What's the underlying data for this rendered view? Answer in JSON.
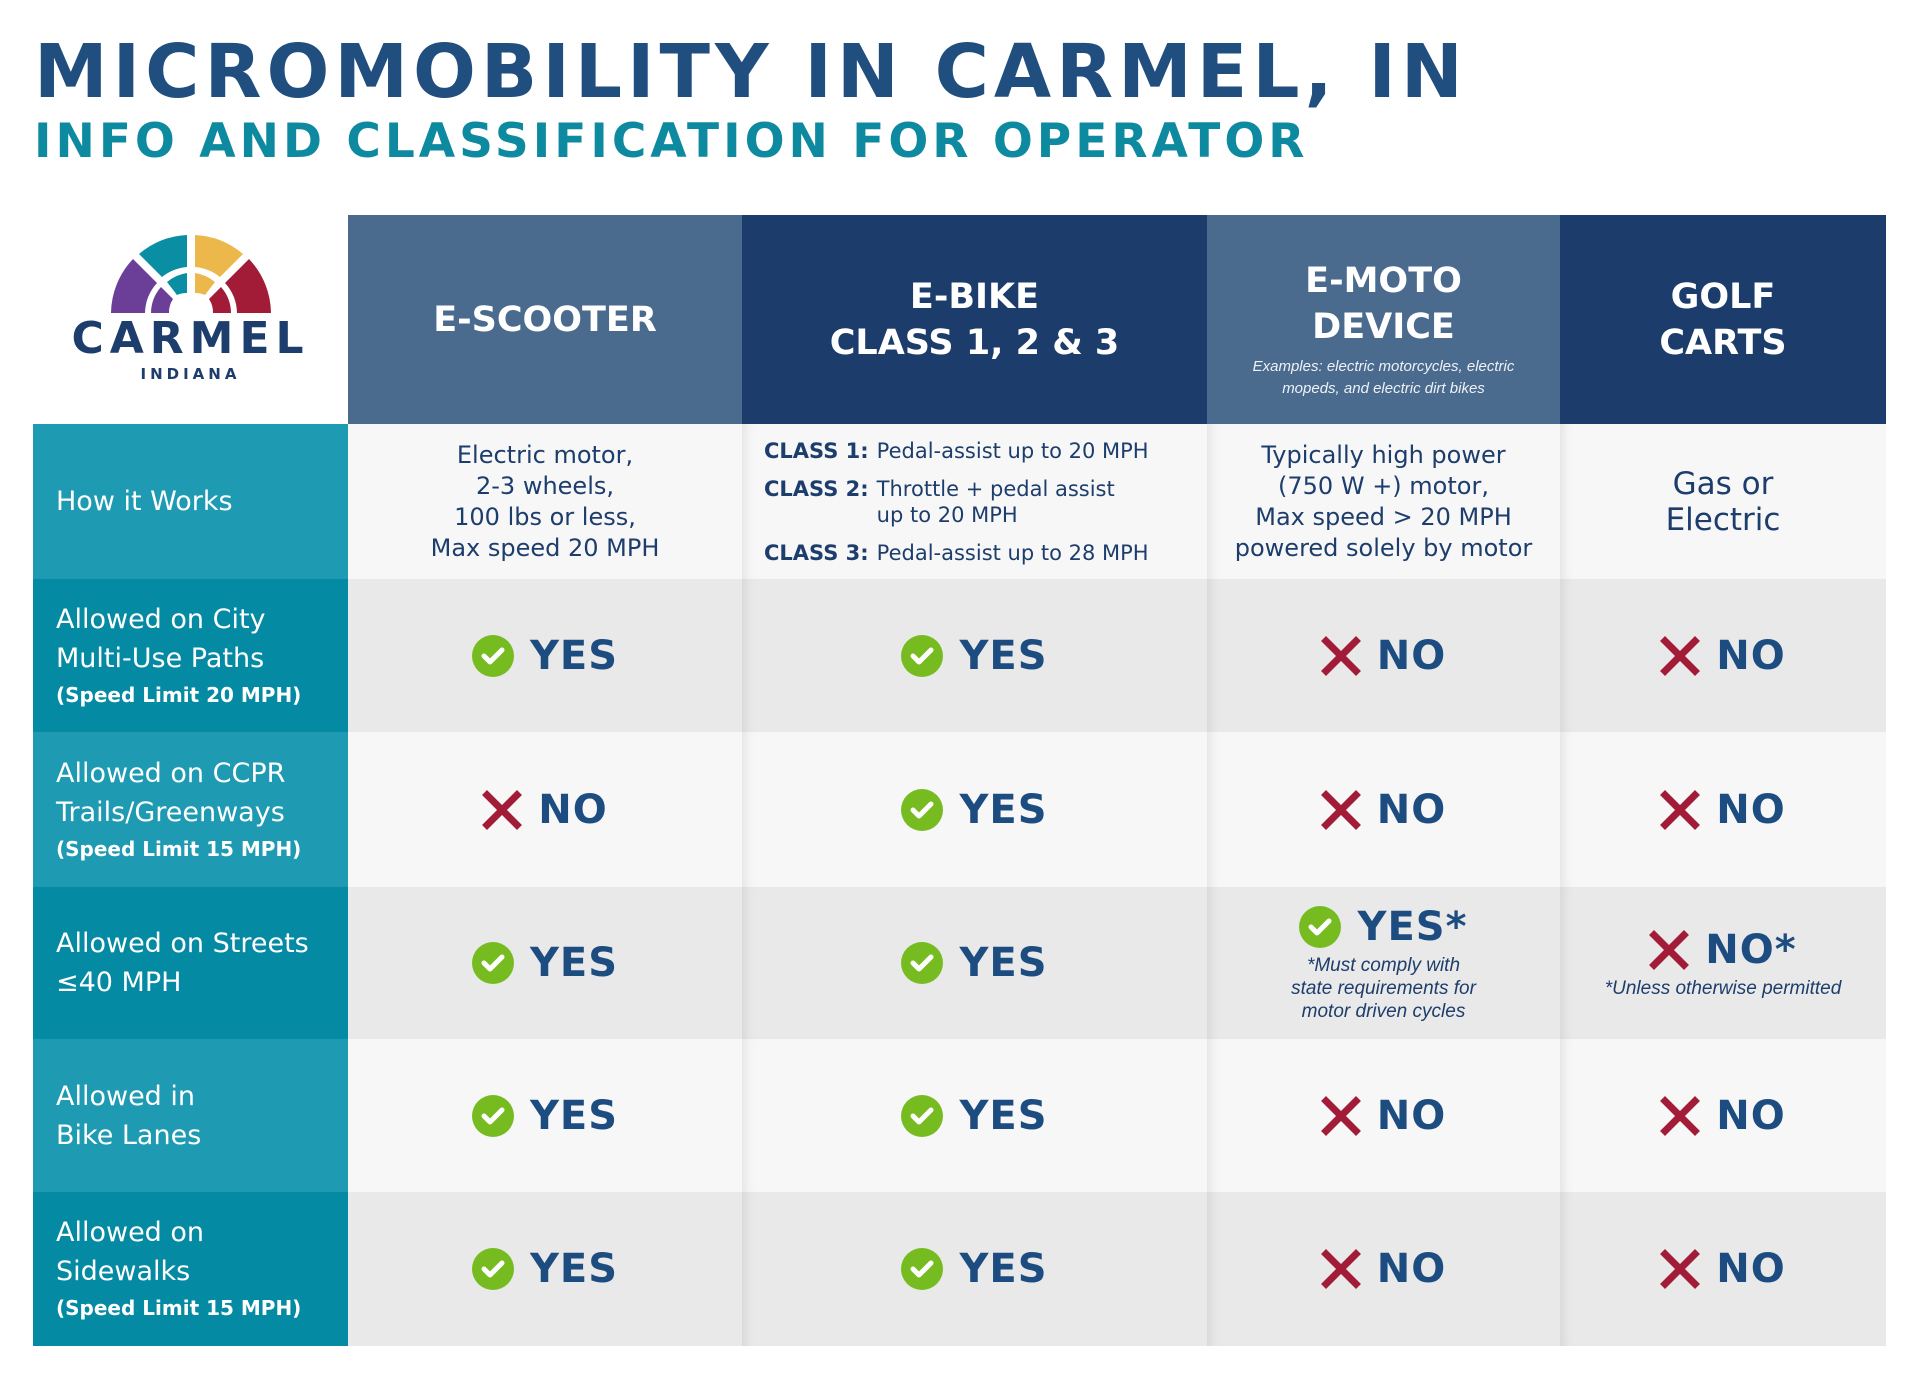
{
  "header": {
    "title": "MICROMOBILITY IN CARMEL, IN",
    "subtitle": "INFO AND CLASSIFICATION FOR OPERATOR"
  },
  "logo": {
    "word": "CARMEL",
    "sub": "INDIANA",
    "colors": [
      "#6b3e98",
      "#0a8ea4",
      "#ecb84c",
      "#a31c37"
    ]
  },
  "colors": {
    "title": "#1f4e7f",
    "subtitle": "#0e8aa0",
    "header_light": "#4a6a8e",
    "header_dark": "#1c3d6c",
    "label_a": "#1e9bb2",
    "label_b": "#058aa3",
    "yes_green": "#76bc21",
    "no_red": "#a31c37",
    "verdict_text": "#1d4d80"
  },
  "columns": [
    {
      "title": "E-SCOOTER",
      "note": ""
    },
    {
      "title": "E-BIKE\nCLASS 1, 2 & 3",
      "title_lines": [
        "E-BIKE",
        "CLASS 1, 2 & 3"
      ],
      "note": ""
    },
    {
      "title_lines": [
        "E-MOTO",
        "DEVICE"
      ],
      "note_lines": [
        "Examples: electric motorcycles, electric",
        "mopeds, and electric dirt bikes"
      ]
    },
    {
      "title_lines": [
        "GOLF",
        "CARTS"
      ],
      "note": ""
    }
  ],
  "how_it_works": {
    "label": "How it Works",
    "escooter": [
      "Electric motor,",
      "2-3 wheels,",
      "100 lbs or less,",
      "Max speed 20 MPH"
    ],
    "ebike": [
      {
        "key": "CLASS 1:",
        "lines": [
          "Pedal-assist up to 20 MPH"
        ]
      },
      {
        "key": "CLASS 2:",
        "lines": [
          "Throttle + pedal assist",
          "up to 20 MPH"
        ]
      },
      {
        "key": "CLASS 3:",
        "lines": [
          "Pedal-assist up to 28 MPH"
        ]
      }
    ],
    "emoto": [
      "Typically high power",
      "(750 W +) motor,",
      "Max speed > 20 MPH",
      "powered solely by motor"
    ],
    "golf": [
      "Gas or",
      "Electric"
    ]
  },
  "rows": [
    {
      "label_lines": [
        "Allowed on City",
        "Multi-Use Paths"
      ],
      "sub": "(Speed Limit 20 MPH)",
      "values": [
        {
          "verdict": "YES",
          "type": "yes"
        },
        {
          "verdict": "YES",
          "type": "yes"
        },
        {
          "verdict": "NO",
          "type": "no"
        },
        {
          "verdict": "NO",
          "type": "no"
        }
      ]
    },
    {
      "label_lines": [
        "Allowed on CCPR",
        "Trails/Greenways"
      ],
      "sub": "(Speed Limit 15 MPH)",
      "values": [
        {
          "verdict": "NO",
          "type": "no"
        },
        {
          "verdict": "YES",
          "type": "yes"
        },
        {
          "verdict": "NO",
          "type": "no"
        },
        {
          "verdict": "NO",
          "type": "no"
        }
      ]
    },
    {
      "label_lines": [
        "Allowed on Streets",
        "≤40 MPH"
      ],
      "sub": "",
      "values": [
        {
          "verdict": "YES",
          "type": "yes"
        },
        {
          "verdict": "YES",
          "type": "yes"
        },
        {
          "verdict": "YES*",
          "type": "yes",
          "footnote_lines": [
            "*Must comply with",
            "state requirements for",
            "motor driven cycles"
          ]
        },
        {
          "verdict": "NO*",
          "type": "no",
          "footnote_lines": [
            "*Unless otherwise permitted"
          ]
        }
      ]
    },
    {
      "label_lines": [
        "Allowed in",
        "Bike Lanes"
      ],
      "sub": "",
      "values": [
        {
          "verdict": "YES",
          "type": "yes"
        },
        {
          "verdict": "YES",
          "type": "yes"
        },
        {
          "verdict": "NO",
          "type": "no"
        },
        {
          "verdict": "NO",
          "type": "no"
        }
      ]
    },
    {
      "label_lines": [
        "Allowed on",
        "Sidewalks"
      ],
      "sub": "(Speed Limit 15 MPH)",
      "values": [
        {
          "verdict": "YES",
          "type": "yes"
        },
        {
          "verdict": "YES",
          "type": "yes"
        },
        {
          "verdict": "NO",
          "type": "no"
        },
        {
          "verdict": "NO",
          "type": "no"
        }
      ]
    }
  ]
}
